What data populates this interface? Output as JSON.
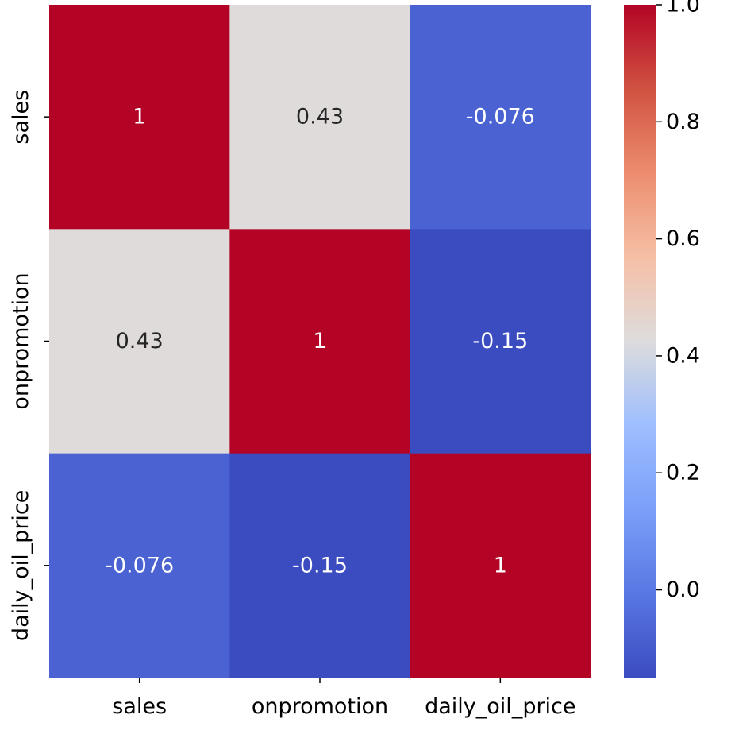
{
  "chart_data": {
    "type": "heatmap",
    "rows": [
      "sales",
      "onpromotion",
      "daily_oil_price"
    ],
    "columns": [
      "sales",
      "onpromotion",
      "daily_oil_price"
    ],
    "values": [
      [
        1,
        0.43,
        -0.076
      ],
      [
        0.43,
        1,
        -0.15
      ],
      [
        -0.076,
        -0.15,
        1
      ]
    ],
    "annotations": [
      [
        "1",
        "0.43",
        "-0.076"
      ],
      [
        "0.43",
        "1",
        "-0.15"
      ],
      [
        "-0.076",
        "-0.15",
        "1"
      ]
    ],
    "colormap": "coolwarm",
    "vmin": -0.15,
    "vmax": 1.0,
    "colorbar": {
      "ticks": [
        0.0,
        0.2,
        0.4,
        0.6,
        0.8,
        1.0
      ],
      "tick_labels": [
        "0.0",
        "0.2",
        "0.4",
        "0.6",
        "0.8",
        "1.0"
      ]
    }
  }
}
